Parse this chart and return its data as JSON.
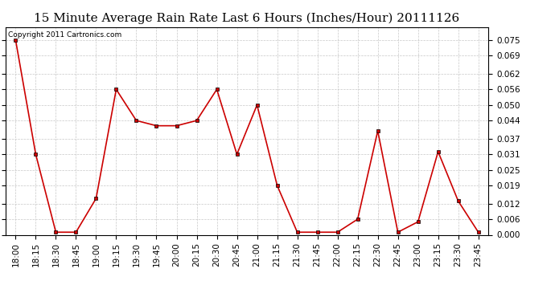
{
  "title": "15 Minute Average Rain Rate Last 6 Hours (Inches/Hour) 20111126",
  "copyright": "Copyright 2011 Cartronics.com",
  "x_labels": [
    "18:00",
    "18:15",
    "18:30",
    "18:45",
    "19:00",
    "19:15",
    "19:30",
    "19:45",
    "20:00",
    "20:15",
    "20:30",
    "20:45",
    "21:00",
    "21:15",
    "21:30",
    "21:45",
    "22:00",
    "22:15",
    "22:30",
    "22:45",
    "23:00",
    "23:15",
    "23:30",
    "23:45"
  ],
  "y_values": [
    0.075,
    0.031,
    0.001,
    0.001,
    0.014,
    0.056,
    0.044,
    0.042,
    0.042,
    0.044,
    0.056,
    0.031,
    0.05,
    0.019,
    0.001,
    0.001,
    0.001,
    0.006,
    0.04,
    0.001,
    0.005,
    0.032,
    0.013,
    0.001
  ],
  "ylim": [
    0.0,
    0.08
  ],
  "yticks": [
    0.0,
    0.006,
    0.012,
    0.019,
    0.025,
    0.031,
    0.037,
    0.044,
    0.05,
    0.056,
    0.062,
    0.069,
    0.075
  ],
  "line_color": "#cc0000",
  "marker": "s",
  "marker_size": 2.5,
  "bg_color": "#ffffff",
  "grid_color": "#c8c8c8",
  "title_fontsize": 11,
  "tick_fontsize": 7.5,
  "copyright_fontsize": 6.5
}
